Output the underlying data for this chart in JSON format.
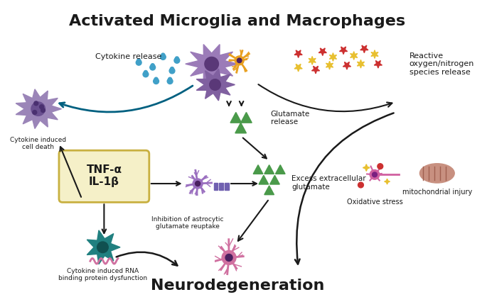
{
  "title": "Activated Microglia and Macrophages",
  "subtitle": "Neurodegeneration",
  "title_fontsize": 16,
  "subtitle_fontsize": 16,
  "bg_color": "#ffffff",
  "labels": {
    "cytokine_release": "Cytokine release",
    "cytokine_death": "Cytokine induced\ncell death",
    "tnf": "TNF-α\nIL-1β",
    "inhibition": "Inhibition of astrocytic\nglutamate reuptake",
    "glutamate_release": "Glutamate\nrelease",
    "excess_glutamate": "Excess extracellular\nglutamate",
    "ros_release": "Reactive\noxygen/nitrogen\nspecies release",
    "oxidative_stress": "Oxidative stress",
    "mitochondrial": "mitochondrial injury",
    "rna_binding": "Cytokine induced RNA\nbinding protein dysfunction"
  },
  "colors": {
    "purple_cell": "#9b7bb8",
    "orange_cell": "#e8a020",
    "pink_cell": "#d070a0",
    "teal_cell": "#208080",
    "green_triangle": "#4a9a4a",
    "blue_dots": "#40a0c8",
    "red_stars": "#cc3030",
    "yellow_stars": "#e8c030",
    "arrow_color": "#1a1a1a",
    "tnf_box_bg": "#f5f0c8",
    "tnf_box_border": "#c8b040",
    "text_color": "#1a1a1a"
  }
}
